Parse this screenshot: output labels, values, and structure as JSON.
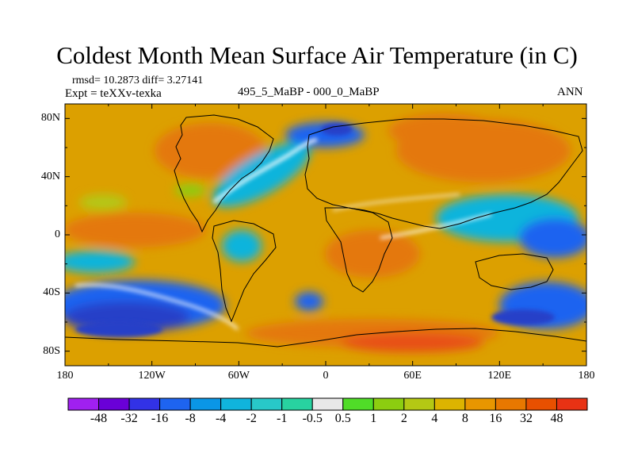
{
  "title": "Coldest Month Mean Surface Air Temperature (in C)",
  "stats": "rmsd= 10.2873 diff= 3.27141",
  "experiment": "Expt = teXXv-texka",
  "difference_label": "495_5_MaBP - 000_0_MaBP",
  "season": "ANN",
  "map": {
    "lon_labels": [
      "180",
      "120W",
      "60W",
      "0",
      "60E",
      "120E",
      "180"
    ],
    "lat_labels": [
      "80N",
      "40N",
      "0",
      "40S",
      "80S"
    ],
    "lat_values": [
      80,
      40,
      0,
      -40,
      -80
    ],
    "lon_range": [
      -180,
      180
    ],
    "lat_range": [
      -90,
      90
    ]
  },
  "colorbar": {
    "colors": [
      "#a020f0",
      "#6a00d8",
      "#3232e6",
      "#1e64f0",
      "#0a96e6",
      "#10b4dc",
      "#28c8c8",
      "#28d2a0",
      "#e8e8e8",
      "#50dc28",
      "#8ccd10",
      "#b4c814",
      "#dcb400",
      "#e89600",
      "#e87800",
      "#e85000",
      "#e83214"
    ],
    "labels": [
      "-48",
      "-32",
      "-16",
      "-8",
      "-4",
      "-2",
      "-1",
      "-0.5",
      "0.5",
      "1",
      "2",
      "4",
      "8",
      "16",
      "32",
      "48"
    ]
  },
  "palette": {
    "warm": "#dca000",
    "hot": "#e4780a",
    "red": "#e85014",
    "cold": "#1e64f0",
    "cyan": "#10b4dc",
    "deep": "#2840c8",
    "green": "#50c828",
    "white": "#ffffff"
  }
}
